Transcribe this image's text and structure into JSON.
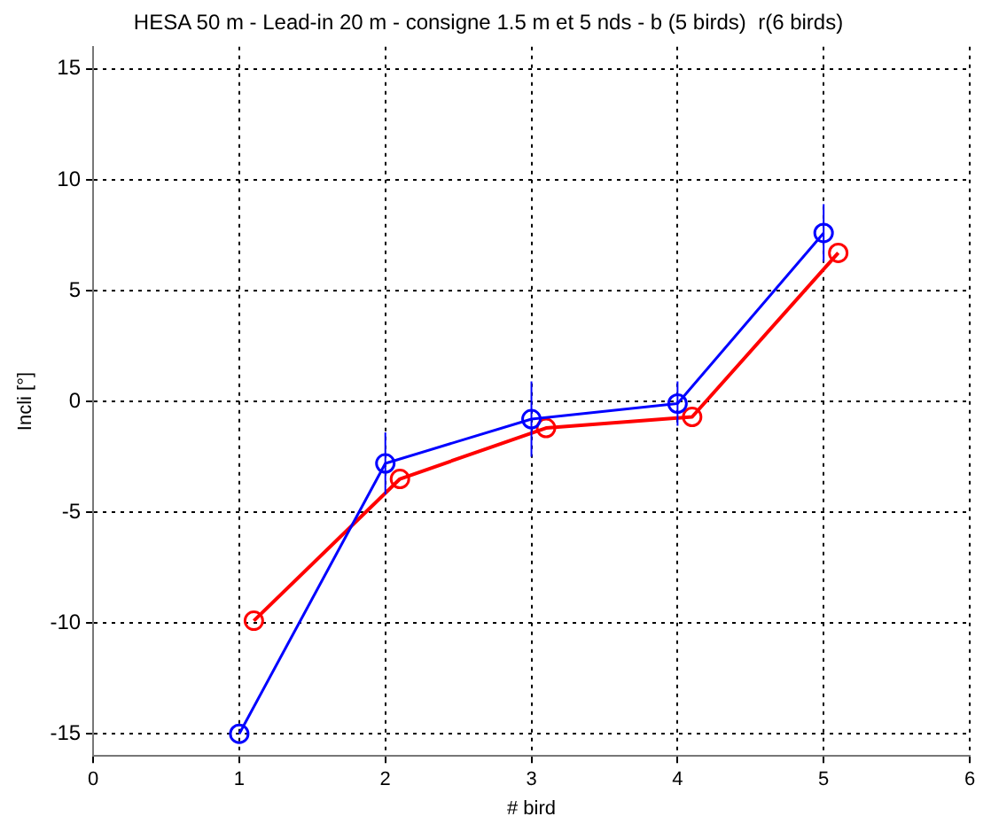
{
  "chart_data": {
    "type": "line",
    "title": "HESA 50 m - Lead-in 20 m - consigne 1.5 m et 5 nds - b (5 birds)  r(6 birds)",
    "xlabel": "# bird",
    "ylabel": "Incli [°]",
    "xlim": [
      0,
      6
    ],
    "xticks": [
      0,
      1,
      2,
      3,
      4,
      5,
      6
    ],
    "ylim": [
      -16,
      16
    ],
    "yticks": [
      -15,
      -10,
      -5,
      0,
      5,
      10,
      15
    ],
    "grid": true,
    "legend": false,
    "marker": "circle",
    "line_style": "solid",
    "series": [
      {
        "color": "#0000ff",
        "x": [
          1,
          2,
          3,
          4,
          5
        ],
        "values": [
          -15,
          -2.8,
          -0.8,
          -0.1,
          7.6
        ],
        "errors": [
          null,
          1.4,
          1.7,
          1,
          1.3
        ]
      },
      {
        "color": "#ff0000",
        "x": [
          1.1,
          2.1,
          3.1,
          4.1,
          5.1
        ],
        "values": [
          -9.9,
          -3.5,
          -1.2,
          -0.7,
          6.7
        ]
      }
    ]
  }
}
